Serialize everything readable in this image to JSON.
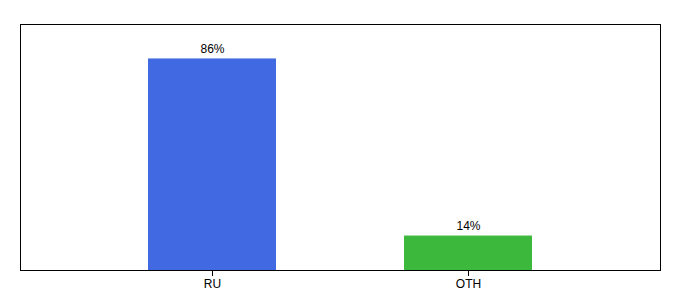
{
  "chart_data": {
    "type": "bar",
    "categories": [
      "RU",
      "OTH"
    ],
    "values": [
      86,
      14
    ],
    "value_labels": [
      "86%",
      "14%"
    ],
    "colors": [
      "#4169e1",
      "#3cb83c"
    ],
    "ylim": [
      0,
      100
    ],
    "data_labels": true,
    "tick_labels": "x"
  }
}
